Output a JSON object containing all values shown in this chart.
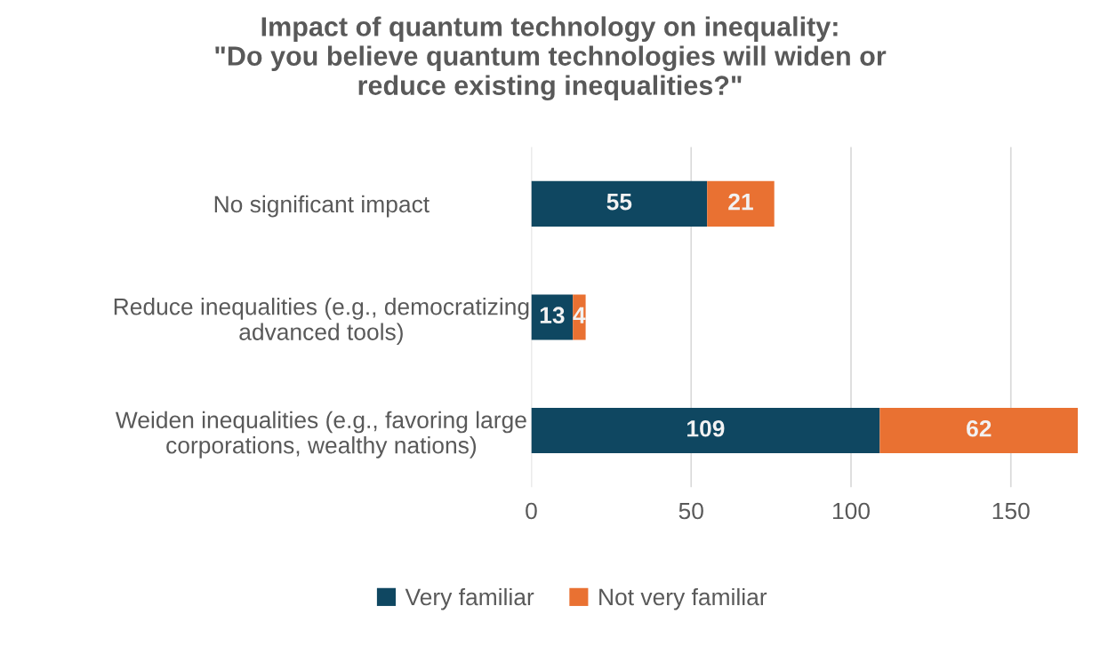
{
  "chart_data": {
    "type": "bar",
    "orientation": "horizontal",
    "stacked": true,
    "title": "Impact of quantum technology on inequality:\n\"Do you believe quantum technologies will widen or\nreduce existing inequalities?\"",
    "categories": [
      "No significant impact",
      "Reduce inequalities (e.g., democratizing\nadvanced tools)",
      "Weiden inequalities (e.g., favoring large\ncorporations, wealthy nations)"
    ],
    "series": [
      {
        "name": "Very familiar",
        "color": "#0f4761",
        "values": [
          55,
          13,
          109
        ]
      },
      {
        "name": "Not very familiar",
        "color": "#e97132",
        "values": [
          21,
          4,
          62
        ]
      }
    ],
    "xlim": [
      0,
      171
    ],
    "xticks": [
      0,
      50,
      100,
      150
    ],
    "grid": "x",
    "legend": "bottom",
    "data_labels": true
  }
}
